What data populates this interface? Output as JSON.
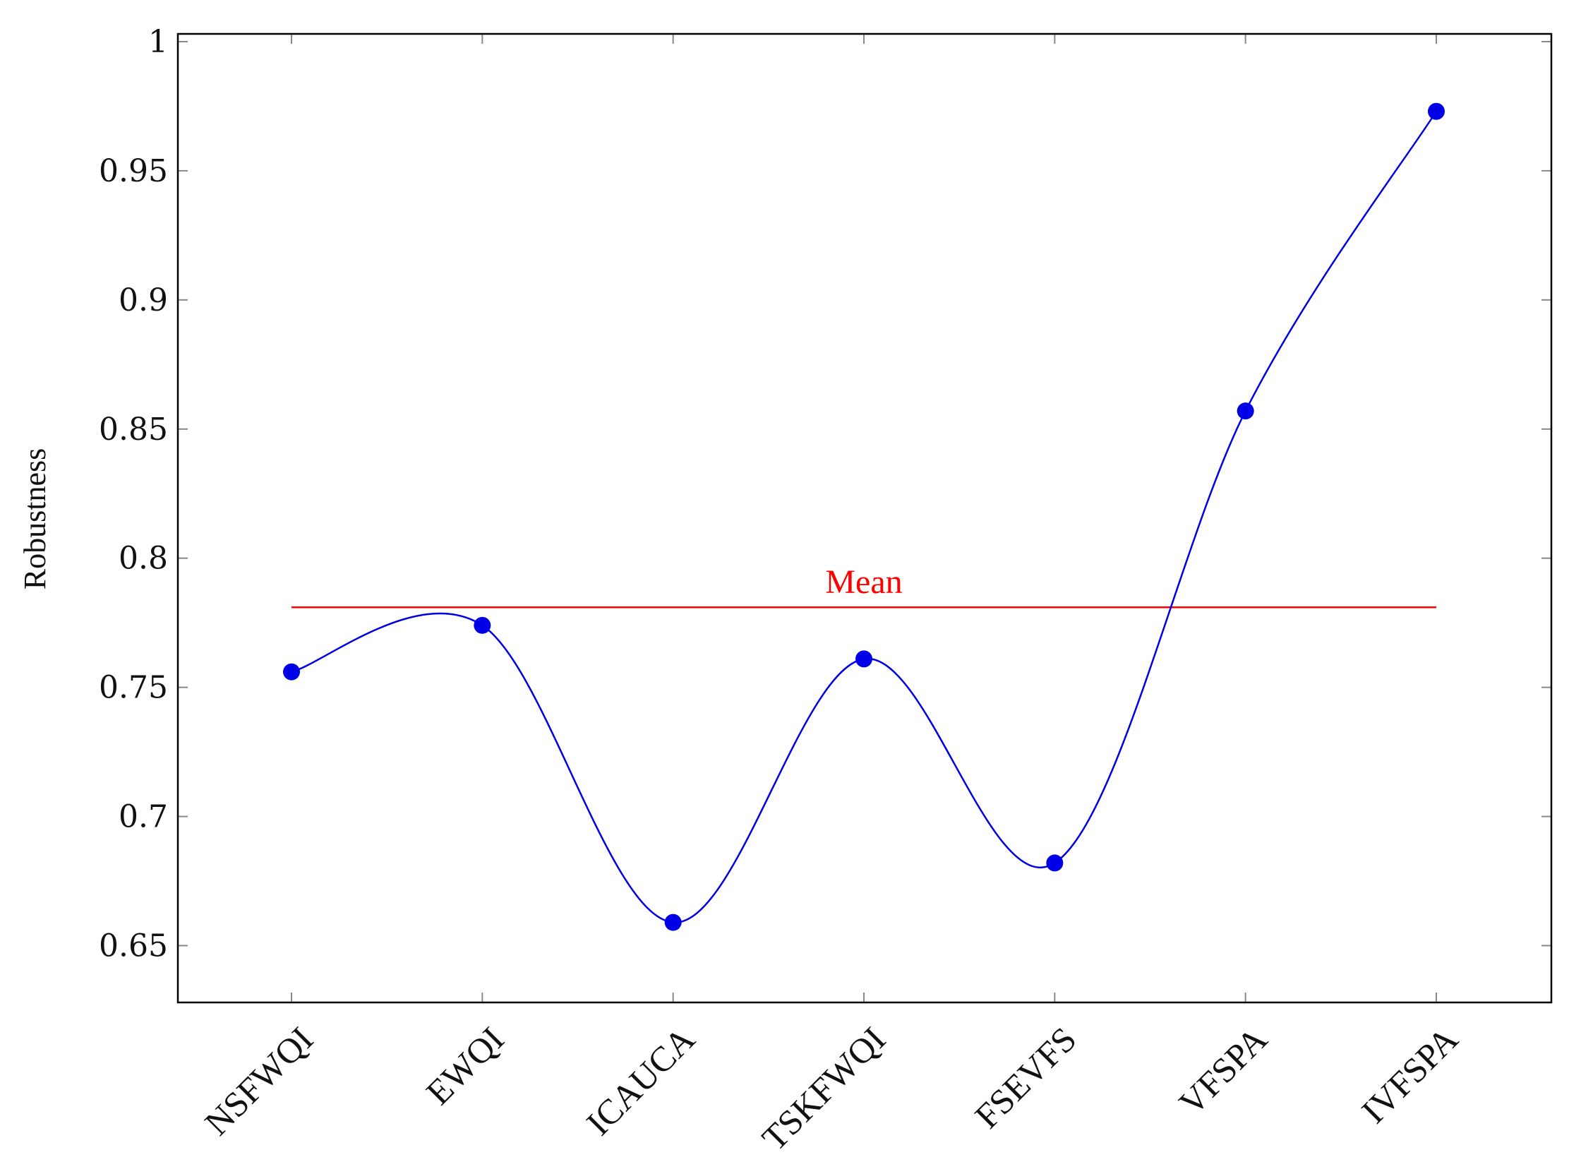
{
  "chart_data": {
    "type": "line",
    "title": "",
    "xlabel": "",
    "ylabel": "Robustness",
    "categories": [
      "NSFWQI",
      "EWQI",
      "ICAUCA",
      "TSKFWQI",
      "FSEVFS",
      "VFSPA",
      "IVFSPA"
    ],
    "series": [
      {
        "values": [
          0.756,
          0.774,
          0.659,
          0.761,
          0.682,
          0.857,
          0.973
        ],
        "color": "#0000e6",
        "smooth": true,
        "marker": "circle"
      }
    ],
    "mean": {
      "label": "Mean",
      "value": 0.781,
      "color": "#ff0000"
    },
    "ylim": [
      0.628,
      1.003
    ],
    "yticks": [
      0.65,
      0.7,
      0.75,
      0.8,
      0.85,
      0.9,
      0.95,
      1
    ],
    "ytick_labels": [
      "0.65",
      "0.7",
      "0.75",
      "0.8",
      "0.85",
      "0.9",
      "0.95",
      "1"
    ],
    "grid": false,
    "legend": "none"
  }
}
